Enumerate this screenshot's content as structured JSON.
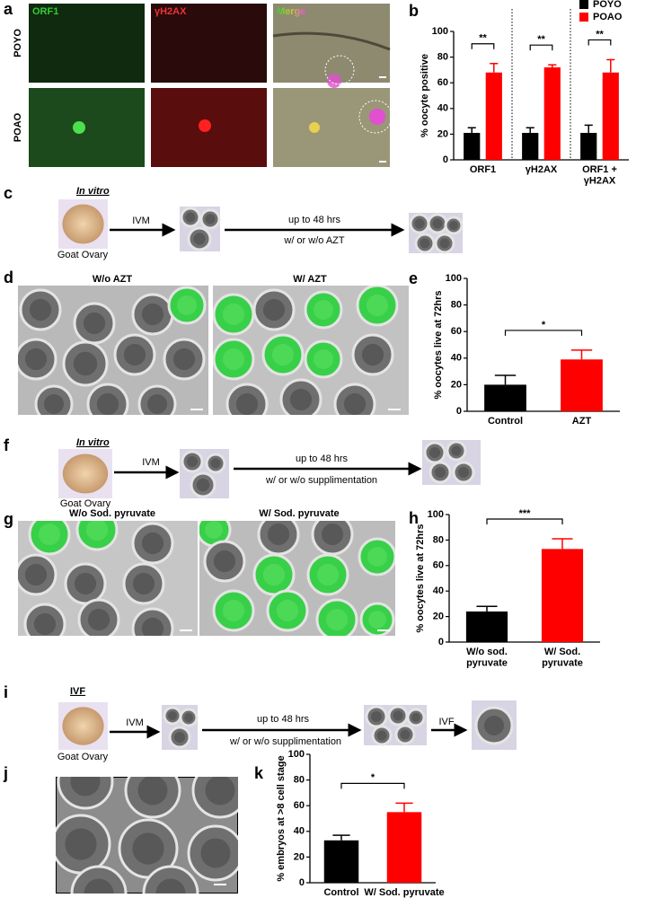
{
  "panel_labels": [
    "a",
    "b",
    "c",
    "d",
    "e",
    "f",
    "g",
    "h",
    "i",
    "j",
    "k"
  ],
  "panel_a": {
    "columns": [
      "ORF1",
      "γH2AX",
      "Merge"
    ],
    "rows": [
      "POYO",
      "POAO"
    ]
  },
  "panel_c": {
    "title": "In vitro",
    "source": "Goat Ovary",
    "step1": "IVM",
    "duration": "up to 48 hrs",
    "condition": "w/ or w/o AZT"
  },
  "panel_d": {
    "titles": [
      "W/o AZT",
      "W/ AZT"
    ]
  },
  "panel_f": {
    "title": "In vitro",
    "source": "Goat Ovary",
    "step1": "IVM",
    "duration": "up to 48 hrs",
    "condition": "w/ or w/o supplimentation"
  },
  "panel_g": {
    "titles": [
      "W/o Sod. pyruvate",
      "W/ Sod. pyruvate"
    ]
  },
  "panel_i": {
    "title": "IVF",
    "source": "Goat Ovary",
    "step1": "IVM",
    "duration": "up to 48 hrs",
    "condition": "w/ or w/o supplimentation",
    "step2": "IVF"
  },
  "chart_data": [
    {
      "type": "bar",
      "ylabel": "% oocyte positive",
      "categories": [
        "ORF1",
        "γH2AX",
        "ORF1 +\nγH2AX"
      ],
      "series": [
        {
          "name": "POYO",
          "color": "#000000",
          "values": [
            21,
            21,
            21
          ],
          "errors": [
            4,
            4,
            6
          ]
        },
        {
          "name": "POAO",
          "color": "#ff0000",
          "values": [
            68,
            72,
            68
          ],
          "errors": [
            7,
            2,
            10
          ]
        }
      ],
      "ylim": [
        0,
        100
      ],
      "yticks": [
        0,
        20,
        40,
        60,
        80,
        100
      ],
      "annotations": [
        "**",
        "**",
        "**"
      ],
      "legend": "upper right"
    },
    {
      "type": "bar",
      "ylabel": "% oocytes live at 72hrs",
      "categories": [
        "Control",
        "AZT"
      ],
      "values": [
        20,
        39
      ],
      "errors": [
        7,
        7
      ],
      "colors": [
        "#000000",
        "#ff0000"
      ],
      "ylim": [
        0,
        100
      ],
      "yticks": [
        0,
        20,
        40,
        60,
        80,
        100
      ],
      "annotations": [
        "*"
      ]
    },
    {
      "type": "bar",
      "ylabel": "% oocytes live at 72hrs",
      "categories": [
        "W/o sod.\npyruvate",
        "W/ Sod.\npyruvate"
      ],
      "values": [
        24,
        73
      ],
      "errors": [
        4,
        8
      ],
      "colors": [
        "#000000",
        "#ff0000"
      ],
      "ylim": [
        0,
        100
      ],
      "yticks": [
        0,
        20,
        40,
        60,
        80,
        100
      ],
      "annotations": [
        "***"
      ]
    },
    {
      "type": "bar",
      "ylabel": "% embryos at >8 cell stage",
      "categories": [
        "Control",
        "W/ Sod. pyruvate"
      ],
      "values": [
        33,
        55
      ],
      "errors": [
        4,
        7
      ],
      "colors": [
        "#000000",
        "#ff0000"
      ],
      "ylim": [
        0,
        100
      ],
      "yticks": [
        0,
        20,
        40,
        60,
        80,
        100
      ],
      "annotations": [
        "*"
      ]
    }
  ]
}
